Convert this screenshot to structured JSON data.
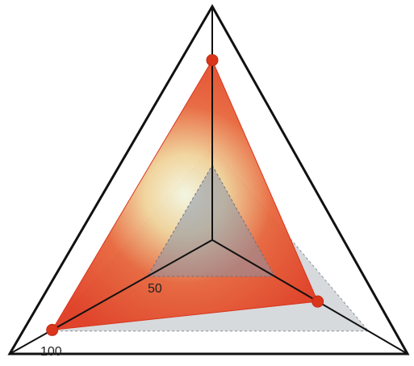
{
  "chart_data": {
    "type": "radar",
    "axes_count": 3,
    "range": [
      0,
      100
    ],
    "tick_labels": [
      "50",
      "100"
    ],
    "series": [
      {
        "values": [
          77,
          54,
          79
        ],
        "color": "#e04a2a"
      },
      {
        "values": [
          40,
          80,
          80
        ],
        "color": "#c9cdd2"
      }
    ],
    "grid": false,
    "legend": "none"
  }
}
